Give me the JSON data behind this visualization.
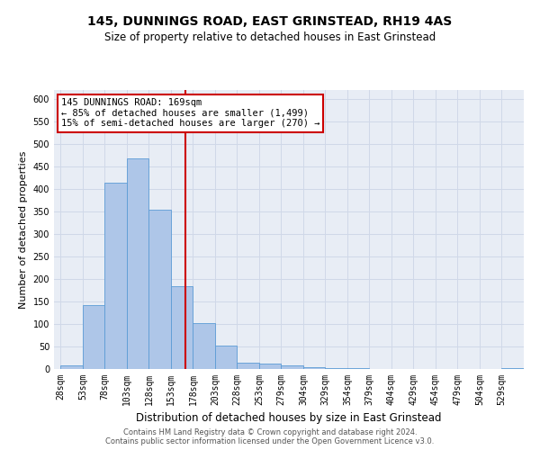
{
  "title": "145, DUNNINGS ROAD, EAST GRINSTEAD, RH19 4AS",
  "subtitle": "Size of property relative to detached houses in East Grinstead",
  "xlabel": "Distribution of detached houses by size in East Grinstead",
  "ylabel": "Number of detached properties",
  "footer_line1": "Contains HM Land Registry data © Crown copyright and database right 2024.",
  "footer_line2": "Contains public sector information licensed under the Open Government Licence v3.0.",
  "bin_labels": [
    "28sqm",
    "53sqm",
    "78sqm",
    "103sqm",
    "128sqm",
    "153sqm",
    "178sqm",
    "203sqm",
    "228sqm",
    "253sqm",
    "279sqm",
    "304sqm",
    "329sqm",
    "354sqm",
    "379sqm",
    "404sqm",
    "429sqm",
    "454sqm",
    "479sqm",
    "504sqm",
    "529sqm"
  ],
  "bar_values": [
    9,
    143,
    415,
    468,
    355,
    185,
    102,
    53,
    15,
    12,
    9,
    5,
    3,
    3,
    0,
    0,
    0,
    0,
    0,
    0,
    3
  ],
  "bar_color": "#aec6e8",
  "bar_edge_color": "#5b9bd5",
  "property_line_label": "145 DUNNINGS ROAD: 169sqm",
  "annotation_line2": "← 85% of detached houses are smaller (1,499)",
  "annotation_line3": "15% of semi-detached houses are larger (270) →",
  "annotation_box_color": "#cc0000",
  "vline_color": "#cc0000",
  "grid_color": "#d0d8e8",
  "background_color": "#e8edf5",
  "ylim": [
    0,
    620
  ],
  "yticks": [
    0,
    50,
    100,
    150,
    200,
    250,
    300,
    350,
    400,
    450,
    500,
    550,
    600
  ],
  "vline_bin_index": 5.64,
  "title_fontsize": 10,
  "subtitle_fontsize": 8.5,
  "ylabel_fontsize": 8,
  "xlabel_fontsize": 8.5,
  "tick_fontsize": 7,
  "annot_fontsize": 7.5,
  "footer_fontsize": 6
}
